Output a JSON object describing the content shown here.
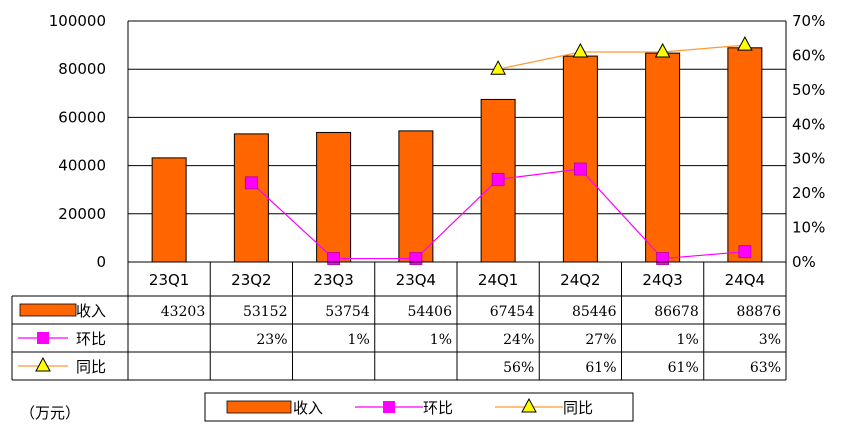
{
  "chart_data": {
    "type": "bar",
    "categories": [
      "23Q1",
      "23Q2",
      "23Q3",
      "23Q4",
      "24Q1",
      "24Q2",
      "24Q3",
      "24Q4"
    ],
    "y_left": {
      "ylim": [
        0,
        100000
      ],
      "ticks": [
        "0",
        "20000",
        "40000",
        "60000",
        "80000",
        "100000"
      ]
    },
    "y_right": {
      "ylim": [
        0,
        70
      ],
      "ticks": [
        "0%",
        "10%",
        "20%",
        "30%",
        "40%",
        "50%",
        "60%",
        "70%"
      ]
    },
    "series": [
      {
        "name": "收入",
        "type": "bar",
        "axis": "left",
        "color": "#FF6600",
        "values": [
          43203,
          53152,
          53754,
          54406,
          67454,
          85446,
          86678,
          88876
        ],
        "table": [
          "43203",
          "53152",
          "53754",
          "54406",
          "67454",
          "85446",
          "86678",
          "88876"
        ]
      },
      {
        "name": "环比",
        "type": "line",
        "axis": "right",
        "color": "#FF00FF",
        "marker": "square",
        "values": [
          null,
          23,
          1,
          1,
          24,
          27,
          1,
          3
        ],
        "table": [
          "",
          "23%",
          "1%",
          "1%",
          "24%",
          "27%",
          "1%",
          "3%"
        ]
      },
      {
        "name": "同比",
        "type": "line",
        "axis": "right",
        "color": "#FF9933",
        "marker": "triangle",
        "marker_color": "#FFFF00",
        "values": [
          null,
          null,
          null,
          null,
          56,
          61,
          61,
          63
        ],
        "table": [
          "",
          "",
          "",
          "",
          "56%",
          "61%",
          "61%",
          "63%"
        ]
      }
    ],
    "grid": true,
    "legend_placement": "bottom",
    "unit_label": "（万元）"
  }
}
